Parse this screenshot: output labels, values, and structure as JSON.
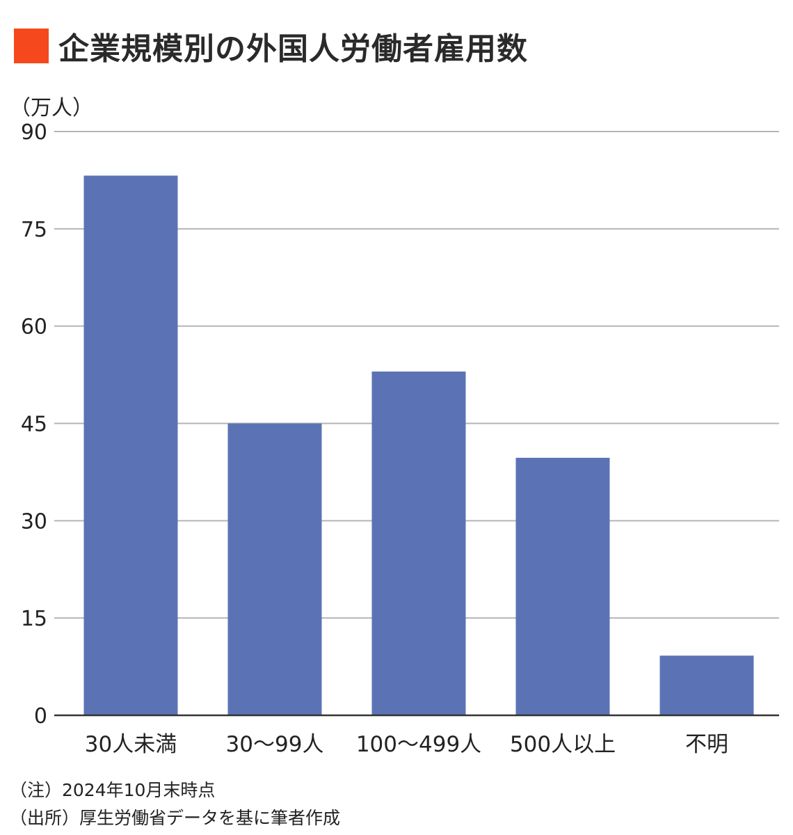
{
  "title": "企業規模別の外国人労働者雇用数",
  "accent_color": "#f5481d",
  "bar_color": "#5b73b5",
  "grid_color": "#b5b5b5",
  "unit_label": "（万人）",
  "notes": {
    "note": "（注）2024年10月末時点",
    "source": "（出所）厚生労働省データを基に筆者作成"
  },
  "chart_data": {
    "type": "bar",
    "title": "企業規模別の外国人労働者雇用数",
    "ylabel": "（万人）",
    "xlabel": "",
    "categories": [
      "30人未満",
      "30〜99人",
      "100〜499人",
      "500人以上",
      "不明"
    ],
    "values": [
      83.2,
      45,
      53,
      39.7,
      9.2
    ],
    "ylim": [
      0,
      90
    ],
    "yticks": [
      0,
      15,
      30,
      45,
      60,
      75,
      90
    ],
    "grid": true,
    "legend": "none"
  }
}
